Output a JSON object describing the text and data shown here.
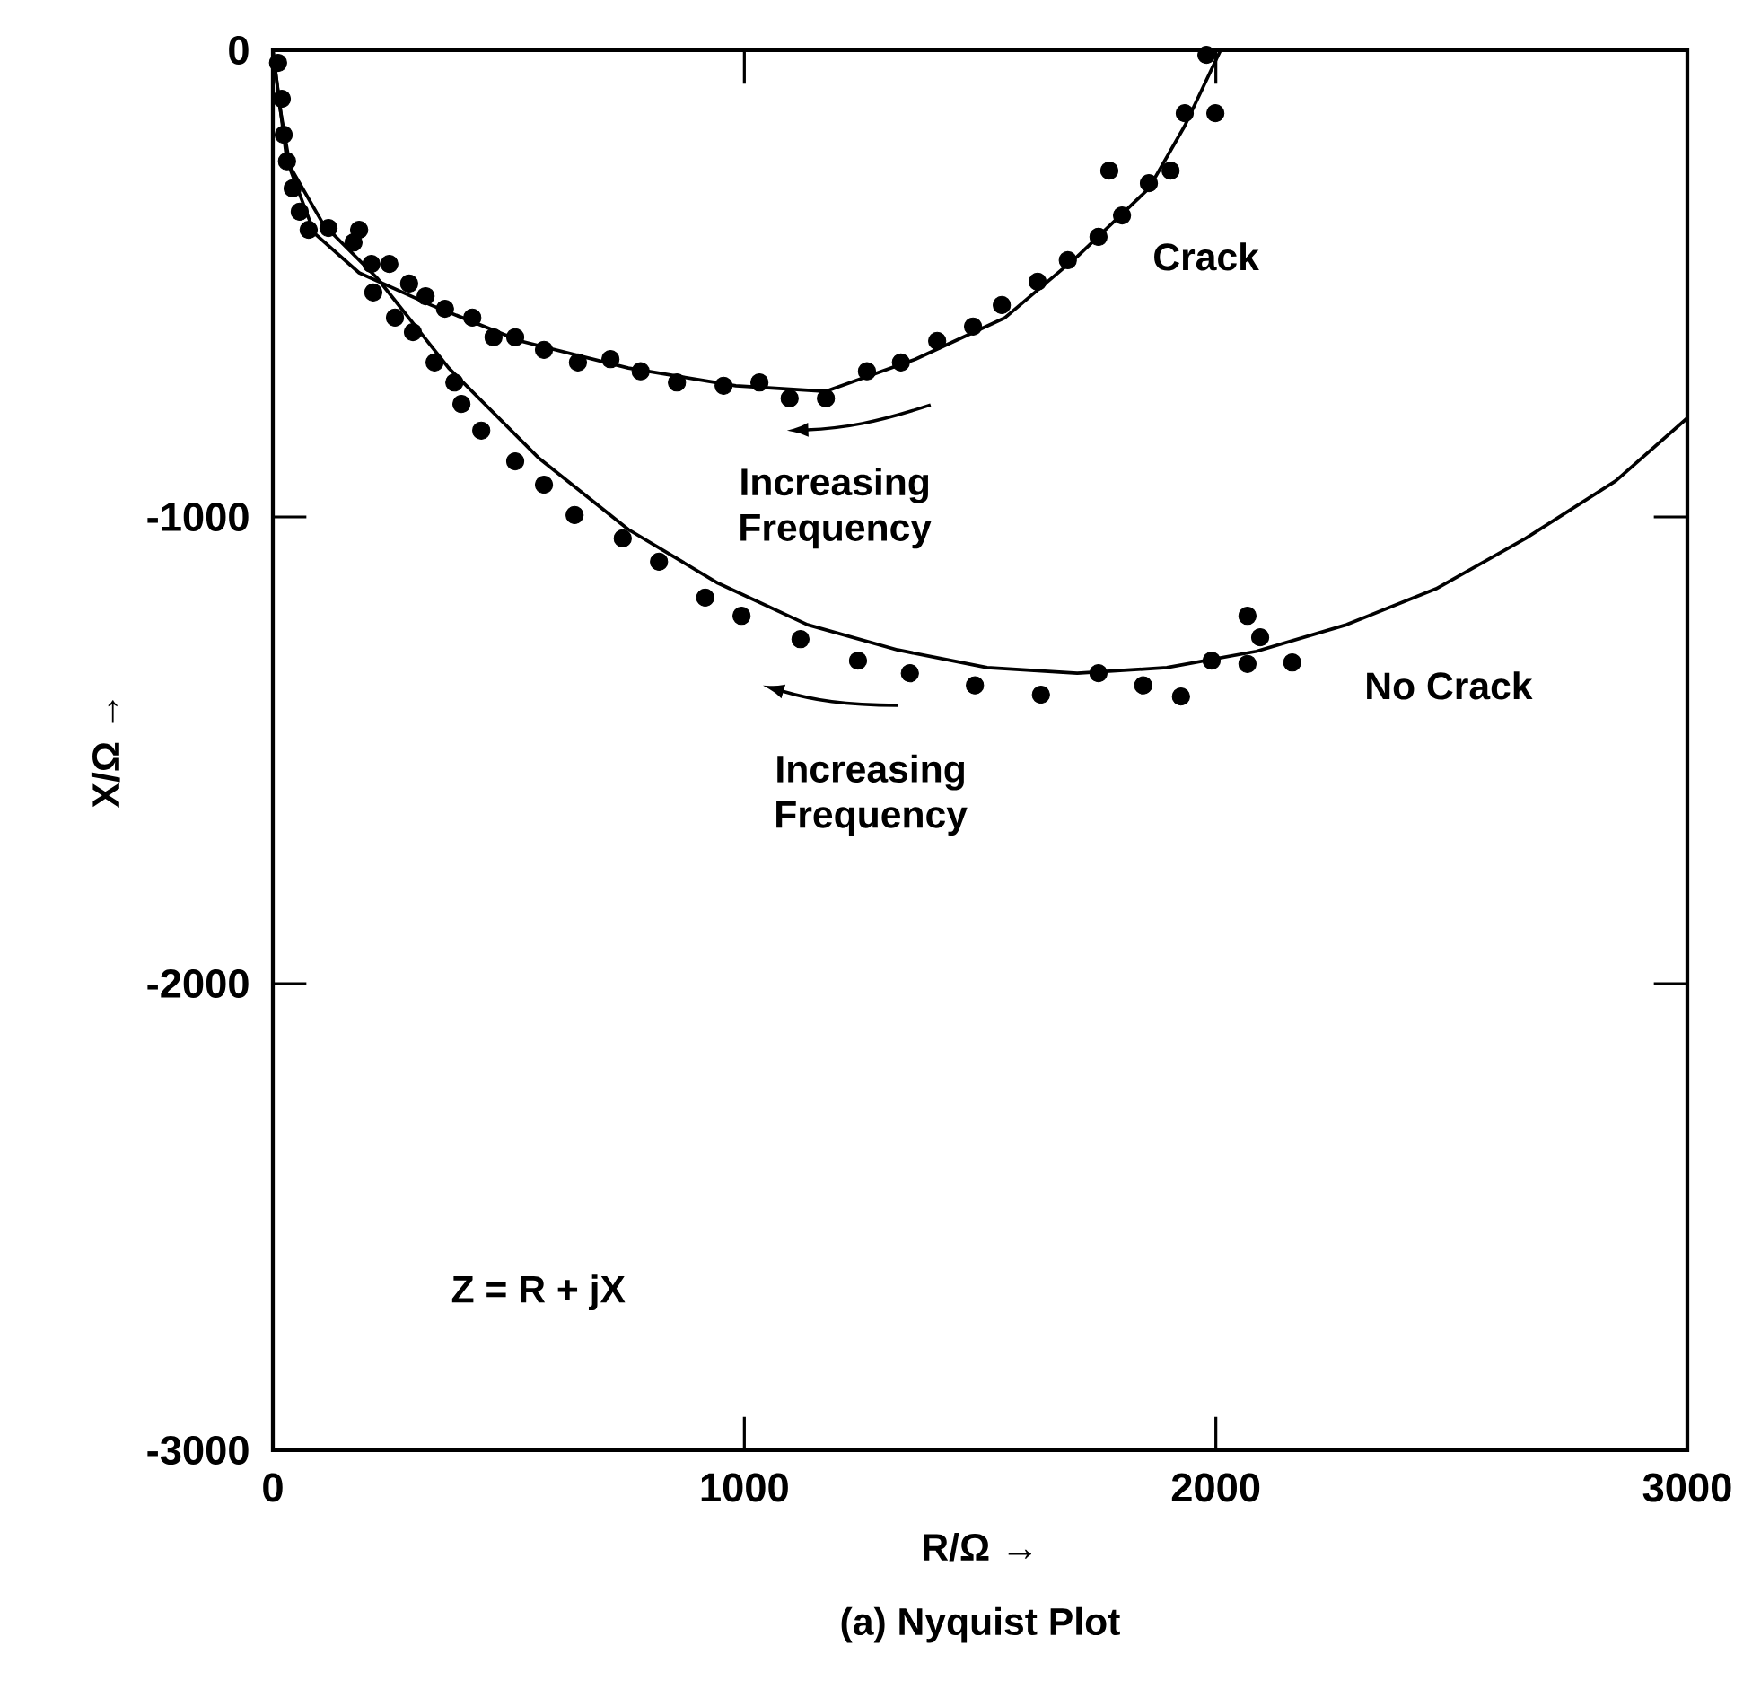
{
  "chart_data": {
    "type": "scatter",
    "title": "(a) Nyquist Plot",
    "xlabel": "R/Ω →",
    "ylabel": "X/Ω →",
    "xlim": [
      0,
      3000
    ],
    "ylim": [
      -3000,
      0
    ],
    "xticks": [
      0,
      1000,
      2000,
      3000
    ],
    "yticks": [
      -3000,
      -2000,
      -1000,
      0
    ],
    "annotations": [
      "Increasing Frequency",
      "Increasing Frequency",
      "Z = R + jX"
    ],
    "series": [
      {
        "name": "Crack",
        "type": "line",
        "marker": "none",
        "line_style": "solid",
        "color": "#000000",
        "x": [
          0,
          15,
          38,
          88,
          183,
          335,
          525,
          754,
          982,
          1173,
          1363,
          1553,
          1706,
          1858,
          1934,
          2010
        ],
        "values": [
          0,
          -123,
          -258,
          -392,
          -477,
          -546,
          -623,
          -681,
          -719,
          -731,
          -662,
          -573,
          -442,
          -296,
          -162,
          0
        ]
      },
      {
        "marker": "circle",
        "color": "#000000",
        "x": [
          11,
          19,
          23,
          30,
          42,
          57,
          76,
          183,
          247,
          289,
          324,
          365,
          423,
          468,
          514,
          575,
          647,
          716,
          780,
          857,
          956,
          1032,
          1096,
          1173,
          1260,
          1332,
          1409,
          1485,
          1546,
          1622,
          1686,
          1751,
          1801,
          1858,
          1774,
          1904,
          1934,
          1999,
          1980
        ],
        "values": [
          -27,
          -104,
          -181,
          -238,
          -296,
          -346,
          -385,
          -385,
          -458,
          -500,
          -527,
          -554,
          -573,
          -615,
          -615,
          -642,
          -669,
          -662,
          -688,
          -712,
          -719,
          -712,
          -746,
          -746,
          -688,
          -669,
          -623,
          -592,
          -546,
          -496,
          -450,
          -400,
          -354,
          -285,
          -258,
          -258,
          -135,
          -135,
          -10
        ]
      },
      {
        "name": "No Crack",
        "type": "line",
        "marker": "none",
        "line_style": "solid",
        "color": "#000000",
        "x": [
          0,
          30,
          107,
          221,
          373,
          563,
          754,
          944,
          1134,
          1325,
          1515,
          1706,
          1896,
          2086,
          2277,
          2467,
          2657,
          2848,
          3000
        ],
        "values": [
          0,
          -238,
          -373,
          -488,
          -681,
          -873,
          -1027,
          -1142,
          -1231,
          -1285,
          -1323,
          -1335,
          -1323,
          -1288,
          -1231,
          -1154,
          -1046,
          -923,
          -788
        ]
      },
      {
        "marker": "circle",
        "color": "#000000",
        "x": [
          118,
          171,
          209,
          213,
          259,
          297,
          343,
          385,
          400,
          442,
          514,
          575,
          640,
          742,
          819,
          917,
          994,
          1119,
          1241,
          1351,
          1489,
          1629,
          1751,
          1846,
          1926,
          1991,
          2067,
          2067,
          2094,
          2162
        ],
        "values": [
          -381,
          -412,
          -458,
          -519,
          -573,
          -604,
          -669,
          -712,
          -758,
          -815,
          -881,
          -931,
          -996,
          -1046,
          -1096,
          -1173,
          -1212,
          -1262,
          -1308,
          -1335,
          -1361,
          -1381,
          -1335,
          -1361,
          -1385,
          -1308,
          -1315,
          -1212,
          -1258,
          -1312
        ]
      }
    ]
  }
}
